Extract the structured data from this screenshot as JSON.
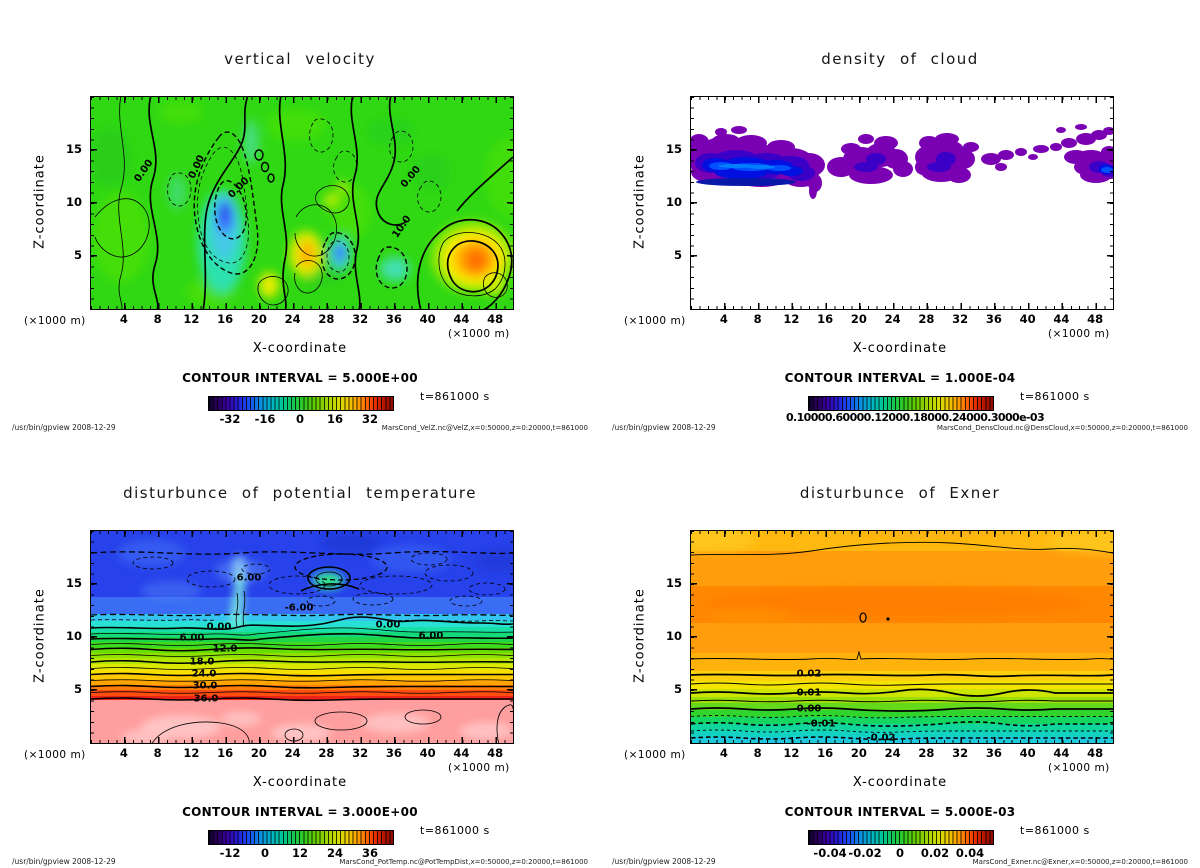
{
  "shared": {
    "xlabel": "X-coordinate",
    "zlabel": "Z-coordinate",
    "unit": "(×1000 m)",
    "time": "t=861000 s",
    "credit": "/usr/bin/gpview   2008-12-29",
    "x_ticks": [
      "4",
      "8",
      "12",
      "16",
      "20",
      "24",
      "28",
      "32",
      "36",
      "40",
      "44",
      "48"
    ],
    "z_ticks": [
      "15",
      "10",
      "5"
    ]
  },
  "panels": [
    {
      "title": "vertical velocity",
      "contour_interval": "CONTOUR INTERVAL = 5.000E+00",
      "cb_ticks": [
        "-32",
        "-16",
        "0",
        "16",
        "32"
      ],
      "source": "MarsCond_VelZ.nc@VelZ,x=0:50000,z=0:20000,t=861000",
      "labels": [
        {
          "t": "0.00"
        },
        {
          "t": "0.00"
        },
        {
          "t": "0.00"
        },
        {
          "t": "0.00"
        },
        {
          "t": "10.0"
        }
      ]
    },
    {
      "title": "density of cloud",
      "contour_interval": "CONTOUR INTERVAL = 1.000E-04",
      "cb_ticks_text": "0.10000.60000.12000.18000.24000.3000e-03",
      "source": "MarsCond_DensCloud.nc@DensCloud,x=0:50000,z=0:20000,t=861000"
    },
    {
      "title": "disturbunce of potential temperature",
      "contour_interval": "CONTOUR INTERVAL = 3.000E+00",
      "cb_ticks": [
        "-12",
        "0",
        "12",
        "24",
        "36"
      ],
      "source": "MarsCond_PotTemp.nc@PotTempDist,x=0:50000,z=0:20000,t=861000",
      "labels": [
        {
          "t": "6.00"
        },
        {
          "t": "-6.00"
        },
        {
          "t": "0.00"
        },
        {
          "t": "0.00"
        },
        {
          "t": "6.00"
        },
        {
          "t": "6.00"
        },
        {
          "t": "12.0"
        },
        {
          "t": "18.0"
        },
        {
          "t": "24.0"
        },
        {
          "t": "30.0"
        },
        {
          "t": "36.0"
        }
      ]
    },
    {
      "title": "disturbunce of Exner",
      "contour_interval": "CONTOUR INTERVAL = 5.000E-03",
      "cb_ticks": [
        "-0.04",
        "-0.02",
        "0",
        "0.02",
        "0.04"
      ],
      "source": "MarsCond_Exner.nc@Exner,x=0:50000,z=0:20000,t=861000",
      "labels": [
        {
          "t": "0.02"
        },
        {
          "t": "0.01"
        },
        {
          "t": "0.00"
        },
        {
          "t": "-0.01"
        },
        {
          "t": "-0.02"
        }
      ]
    }
  ],
  "chart_data": [
    {
      "type": "heatmap",
      "subtype": "filled-contour",
      "title": "vertical velocity",
      "xlabel": "X-coordinate",
      "ylabel": "Z-coordinate",
      "axis_unit": "×1000 m",
      "x_range": [
        0,
        50
      ],
      "z_range": [
        0,
        20
      ],
      "x_ticks": [
        4,
        8,
        12,
        16,
        20,
        24,
        28,
        32,
        36,
        40,
        44,
        48
      ],
      "z_ticks": [
        5,
        10,
        15
      ],
      "contour_interval": 5.0,
      "colorbar_ticks": [
        -32,
        -16,
        0,
        16,
        32
      ],
      "labeled_contours": [
        0.0,
        10.0
      ],
      "time_s": 861000,
      "features": "Field mostly near 0 (green). Downdrafts (cyan/blue, about -10 to -20) near x=13-17 z=3-9, x=29-30 z=5, x=35-37 z=4. Updrafts (yellow/orange, about +10 to +25) near x=21 z=2.5, x=25-26 z=5, strongest at x=44-46 z=4-6. Zero contours solid, negative contours dashed.",
      "source": "MarsCond_VelZ.nc@VelZ,x=0:50000,z=0:20000,t=861000"
    },
    {
      "type": "heatmap",
      "subtype": "filled-contour",
      "title": "density of cloud",
      "xlabel": "X-coordinate",
      "ylabel": "Z-coordinate",
      "axis_unit": "×1000 m",
      "x_range": [
        0,
        50
      ],
      "z_range": [
        0,
        20
      ],
      "x_ticks": [
        4,
        8,
        12,
        16,
        20,
        24,
        28,
        32,
        36,
        40,
        44,
        48
      ],
      "z_ticks": [
        5,
        10,
        15
      ],
      "contour_interval": 0.0001,
      "colorbar_ticks_text": "0.10000.60000.12000.18000.24000.3000e-03 (overlapping labels)",
      "time_s": 861000,
      "features": "Cloud layer confined to z = 12-17.5. Dense blue core (~2-3e-4) at x=0-15 z=13-15 and x=46-50 z=13-14.5; weaker purple patches (~1e-4) scattered over x=16-42 and along z~15-17; rest of domain zero (white).",
      "source": "MarsCond_DensCloud.nc@DensCloud,x=0:50000,z=0:20000,t=861000"
    },
    {
      "type": "heatmap",
      "subtype": "filled-contour",
      "title": "disturbunce of potential temperature",
      "xlabel": "X-coordinate",
      "ylabel": "Z-coordinate",
      "axis_unit": "×1000 m",
      "x_range": [
        0,
        50
      ],
      "z_range": [
        0,
        20
      ],
      "x_ticks": [
        4,
        8,
        12,
        16,
        20,
        24,
        28,
        32,
        36,
        40,
        44,
        48
      ],
      "z_ticks": [
        5,
        10,
        15
      ],
      "contour_interval": 3.0,
      "colorbar_ticks": [
        -12,
        0,
        12,
        24,
        36
      ],
      "labeled_contours": [
        -6,
        0,
        6,
        12,
        18,
        24,
        30,
        36
      ],
      "time_s": 861000,
      "features": "Horizontally stratified: about -9 to -6 (blue) above z~12, bands increasing 0->36 from z~11 down to z~4.5, about +39 (pink) below z~4.5. Wavy disturbances aloft around x=15-16 and x=24-30; negative contours dashed.",
      "source": "MarsCond_PotTemp.nc@PotTempDist,x=0:50000,z=0:20000,t=861000"
    },
    {
      "type": "heatmap",
      "subtype": "filled-contour",
      "title": "disturbunce of Exner",
      "xlabel": "X-coordinate",
      "ylabel": "Z-coordinate",
      "axis_unit": "×1000 m",
      "x_range": [
        0,
        50
      ],
      "z_range": [
        0,
        20
      ],
      "x_ticks": [
        4,
        8,
        12,
        16,
        20,
        24,
        28,
        32,
        36,
        40,
        44,
        48
      ],
      "z_ticks": [
        5,
        10,
        15
      ],
      "contour_interval": 0.005,
      "colorbar_ticks": [
        -0.04,
        -0.02,
        0,
        0.02,
        0.04
      ],
      "labeled_contours": [
        -0.02,
        -0.01,
        0.0,
        0.01,
        0.02
      ],
      "time_s": 861000,
      "features": "Stratified: about +0.03 (orange) above z~8, maximum z~10-13; decreases through 0.00 at z~3.2 to about -0.025 (cyan) at the surface. Positive contours solid, negative dashed; tiny closed contour near x=25 z=12.",
      "source": "MarsCond_Exner.nc@Exner,x=0:50000,z=0:20000,t=861000"
    }
  ]
}
